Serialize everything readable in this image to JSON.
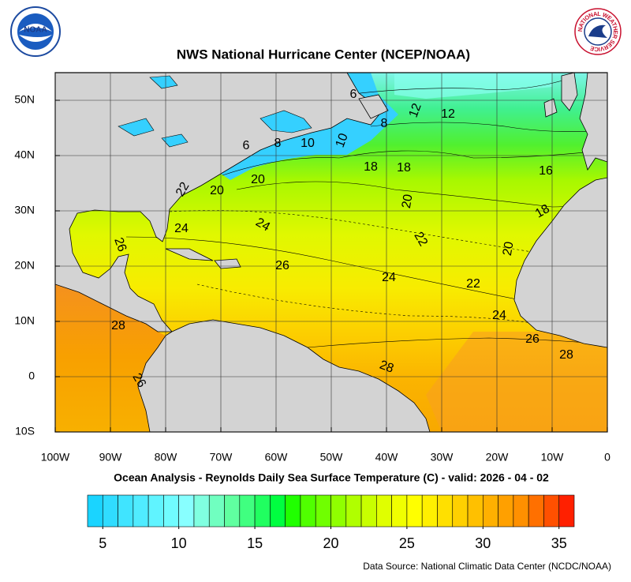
{
  "chart_data": {
    "type": "contour-map",
    "title": "NWS National Hurricane Center (NCEP/NOAA)",
    "caption": "Ocean Analysis - Reynolds Daily Sea Surface Temperature (C) - valid: 2026 - 04 - 02",
    "source": "Data Source: National Climatic Data Center (NCDC/NOAA)",
    "logos": {
      "noaa": "NOAA",
      "nws": "NATIONAL WEATHER SERVICE"
    },
    "xlim": [
      -100,
      0
    ],
    "ylim": [
      -10,
      55
    ],
    "xticks": [
      {
        "value": -100,
        "label": "100W"
      },
      {
        "value": -90,
        "label": "90W"
      },
      {
        "value": -80,
        "label": "80W"
      },
      {
        "value": -70,
        "label": "70W"
      },
      {
        "value": -60,
        "label": "60W"
      },
      {
        "value": -50,
        "label": "50W"
      },
      {
        "value": -40,
        "label": "40W"
      },
      {
        "value": -30,
        "label": "30W"
      },
      {
        "value": -20,
        "label": "20W"
      },
      {
        "value": -10,
        "label": "10W"
      },
      0
    ],
    "yticks": [
      {
        "value": -10,
        "label": "10S"
      },
      0,
      {
        "value": 10,
        "label": "10N"
      },
      {
        "value": 20,
        "label": "20N"
      },
      {
        "value": 30,
        "label": "30N"
      },
      {
        "value": 40,
        "label": "40N"
      },
      {
        "value": 50,
        "label": "50N"
      }
    ],
    "grid": true,
    "contour_labels": [
      6,
      12,
      12,
      8,
      6,
      8,
      10,
      10,
      18,
      18,
      16,
      20,
      18,
      22,
      20,
      20,
      24,
      24,
      26,
      22,
      20,
      26,
      24,
      22,
      28,
      24,
      26,
      28,
      28,
      26
    ],
    "colorbar": {
      "lim": [
        4,
        36
      ],
      "ticks": [
        5,
        10,
        15,
        20,
        25,
        30,
        35
      ],
      "colors": [
        "#1ad4ff",
        "#30dcff",
        "#40e4ff",
        "#50ecff",
        "#60f4ff",
        "#70fcff",
        "#88ffff",
        "#80ffe0",
        "#70ffc0",
        "#60ffa0",
        "#40ff80",
        "#20ff60",
        "#00ff40",
        "#20ff00",
        "#50ff00",
        "#70ff00",
        "#90ff00",
        "#b0ff00",
        "#c8ff00",
        "#e0ff00",
        "#f0ff00",
        "#ffff00",
        "#fff000",
        "#ffe000",
        "#ffd000",
        "#ffc000",
        "#ffb000",
        "#ffa000",
        "#ff9000",
        "#ff7000",
        "#ff5000",
        "#ff2000"
      ]
    }
  }
}
